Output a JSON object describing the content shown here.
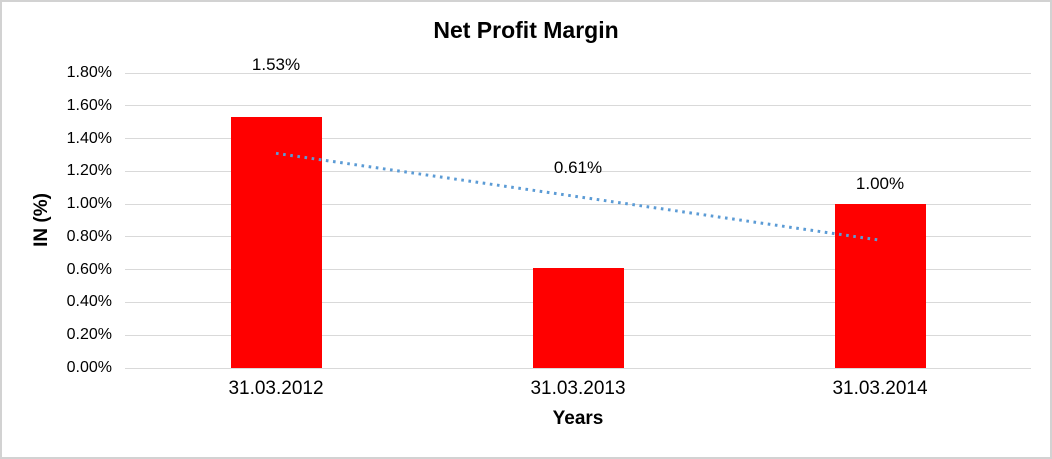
{
  "chart_data": {
    "type": "bar",
    "title": "Net Profit Margin",
    "xlabel": "Years",
    "ylabel": "IN (%)",
    "categories": [
      "31.03.2012",
      "31.03.2013",
      "31.03.2014"
    ],
    "values": [
      1.53,
      0.61,
      1.0
    ],
    "data_labels": [
      "1.53%",
      "0.61%",
      "1.00%"
    ],
    "ytick_labels": [
      "0.00%",
      "0.20%",
      "0.40%",
      "0.60%",
      "0.80%",
      "1.00%",
      "1.20%",
      "1.40%",
      "1.60%",
      "1.80%"
    ],
    "ylim": [
      0,
      1.8
    ],
    "ytick_step": 0.2,
    "grid": true,
    "legend": false,
    "bar_color": "#ff0000",
    "gridline_color": "#d9d9d9",
    "text_color": "#000000",
    "trendline": {
      "type": "linear",
      "style": "dotted",
      "color": "#5b9bd5",
      "y_start": 1.31,
      "y_end": 0.78
    },
    "label_value_y": [
      1.85,
      1.22,
      1.12
    ]
  }
}
